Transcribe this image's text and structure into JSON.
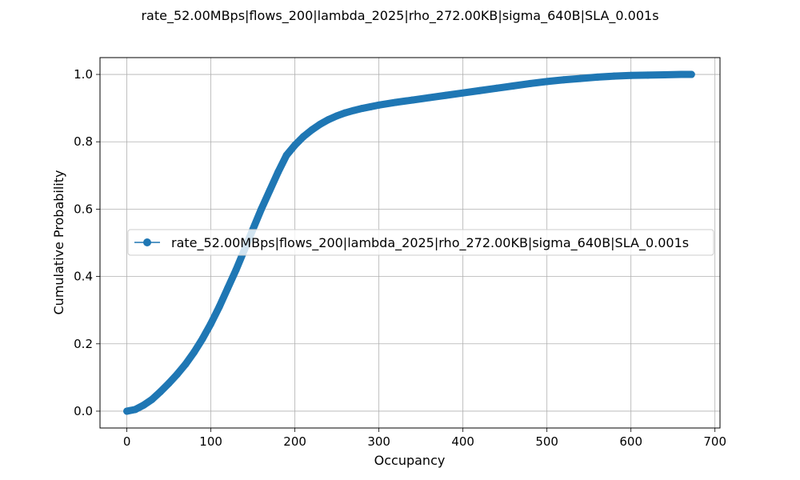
{
  "chart_data": {
    "type": "line",
    "title": "rate_52.00MBps|flows_200|lambda_2025|rho_272.00KB|sigma_640B|SLA_0.001s",
    "xlabel": "Occupancy",
    "ylabel": "Cumulative Probability",
    "xlim": [
      -32,
      706
    ],
    "ylim": [
      -0.05,
      1.05
    ],
    "xticks": [
      0,
      100,
      200,
      300,
      400,
      500,
      600,
      700
    ],
    "yticks": [
      0.0,
      0.2,
      0.4,
      0.6,
      0.8,
      1.0
    ],
    "xtick_labels": [
      "0",
      "100",
      "200",
      "300",
      "400",
      "500",
      "600",
      "700"
    ],
    "ytick_labels": [
      "0.0",
      "0.2",
      "0.4",
      "0.6",
      "0.8",
      "1.0"
    ],
    "grid": true,
    "legend_position": "center-left",
    "series": [
      {
        "name": "rate_52.00MBps|flows_200|lambda_2025|rho_272.00KB|sigma_640B|SLA_0.001s",
        "color": "#1f77b4",
        "marker": "circle",
        "x": [
          0,
          10,
          20,
          30,
          40,
          50,
          60,
          70,
          80,
          90,
          100,
          110,
          120,
          130,
          140,
          150,
          160,
          170,
          180,
          190,
          200,
          210,
          220,
          230,
          240,
          250,
          260,
          270,
          280,
          290,
          300,
          320,
          340,
          360,
          380,
          400,
          420,
          440,
          460,
          480,
          500,
          520,
          540,
          560,
          580,
          600,
          620,
          640,
          660,
          672
        ],
        "y": [
          0.0,
          0.005,
          0.018,
          0.035,
          0.058,
          0.083,
          0.11,
          0.14,
          0.175,
          0.215,
          0.26,
          0.31,
          0.365,
          0.42,
          0.48,
          0.54,
          0.6,
          0.655,
          0.71,
          0.76,
          0.79,
          0.815,
          0.835,
          0.852,
          0.866,
          0.877,
          0.886,
          0.893,
          0.899,
          0.904,
          0.909,
          0.917,
          0.924,
          0.931,
          0.938,
          0.945,
          0.952,
          0.959,
          0.966,
          0.973,
          0.979,
          0.984,
          0.988,
          0.992,
          0.995,
          0.997,
          0.998,
          0.999,
          1.0,
          1.0
        ]
      }
    ]
  }
}
